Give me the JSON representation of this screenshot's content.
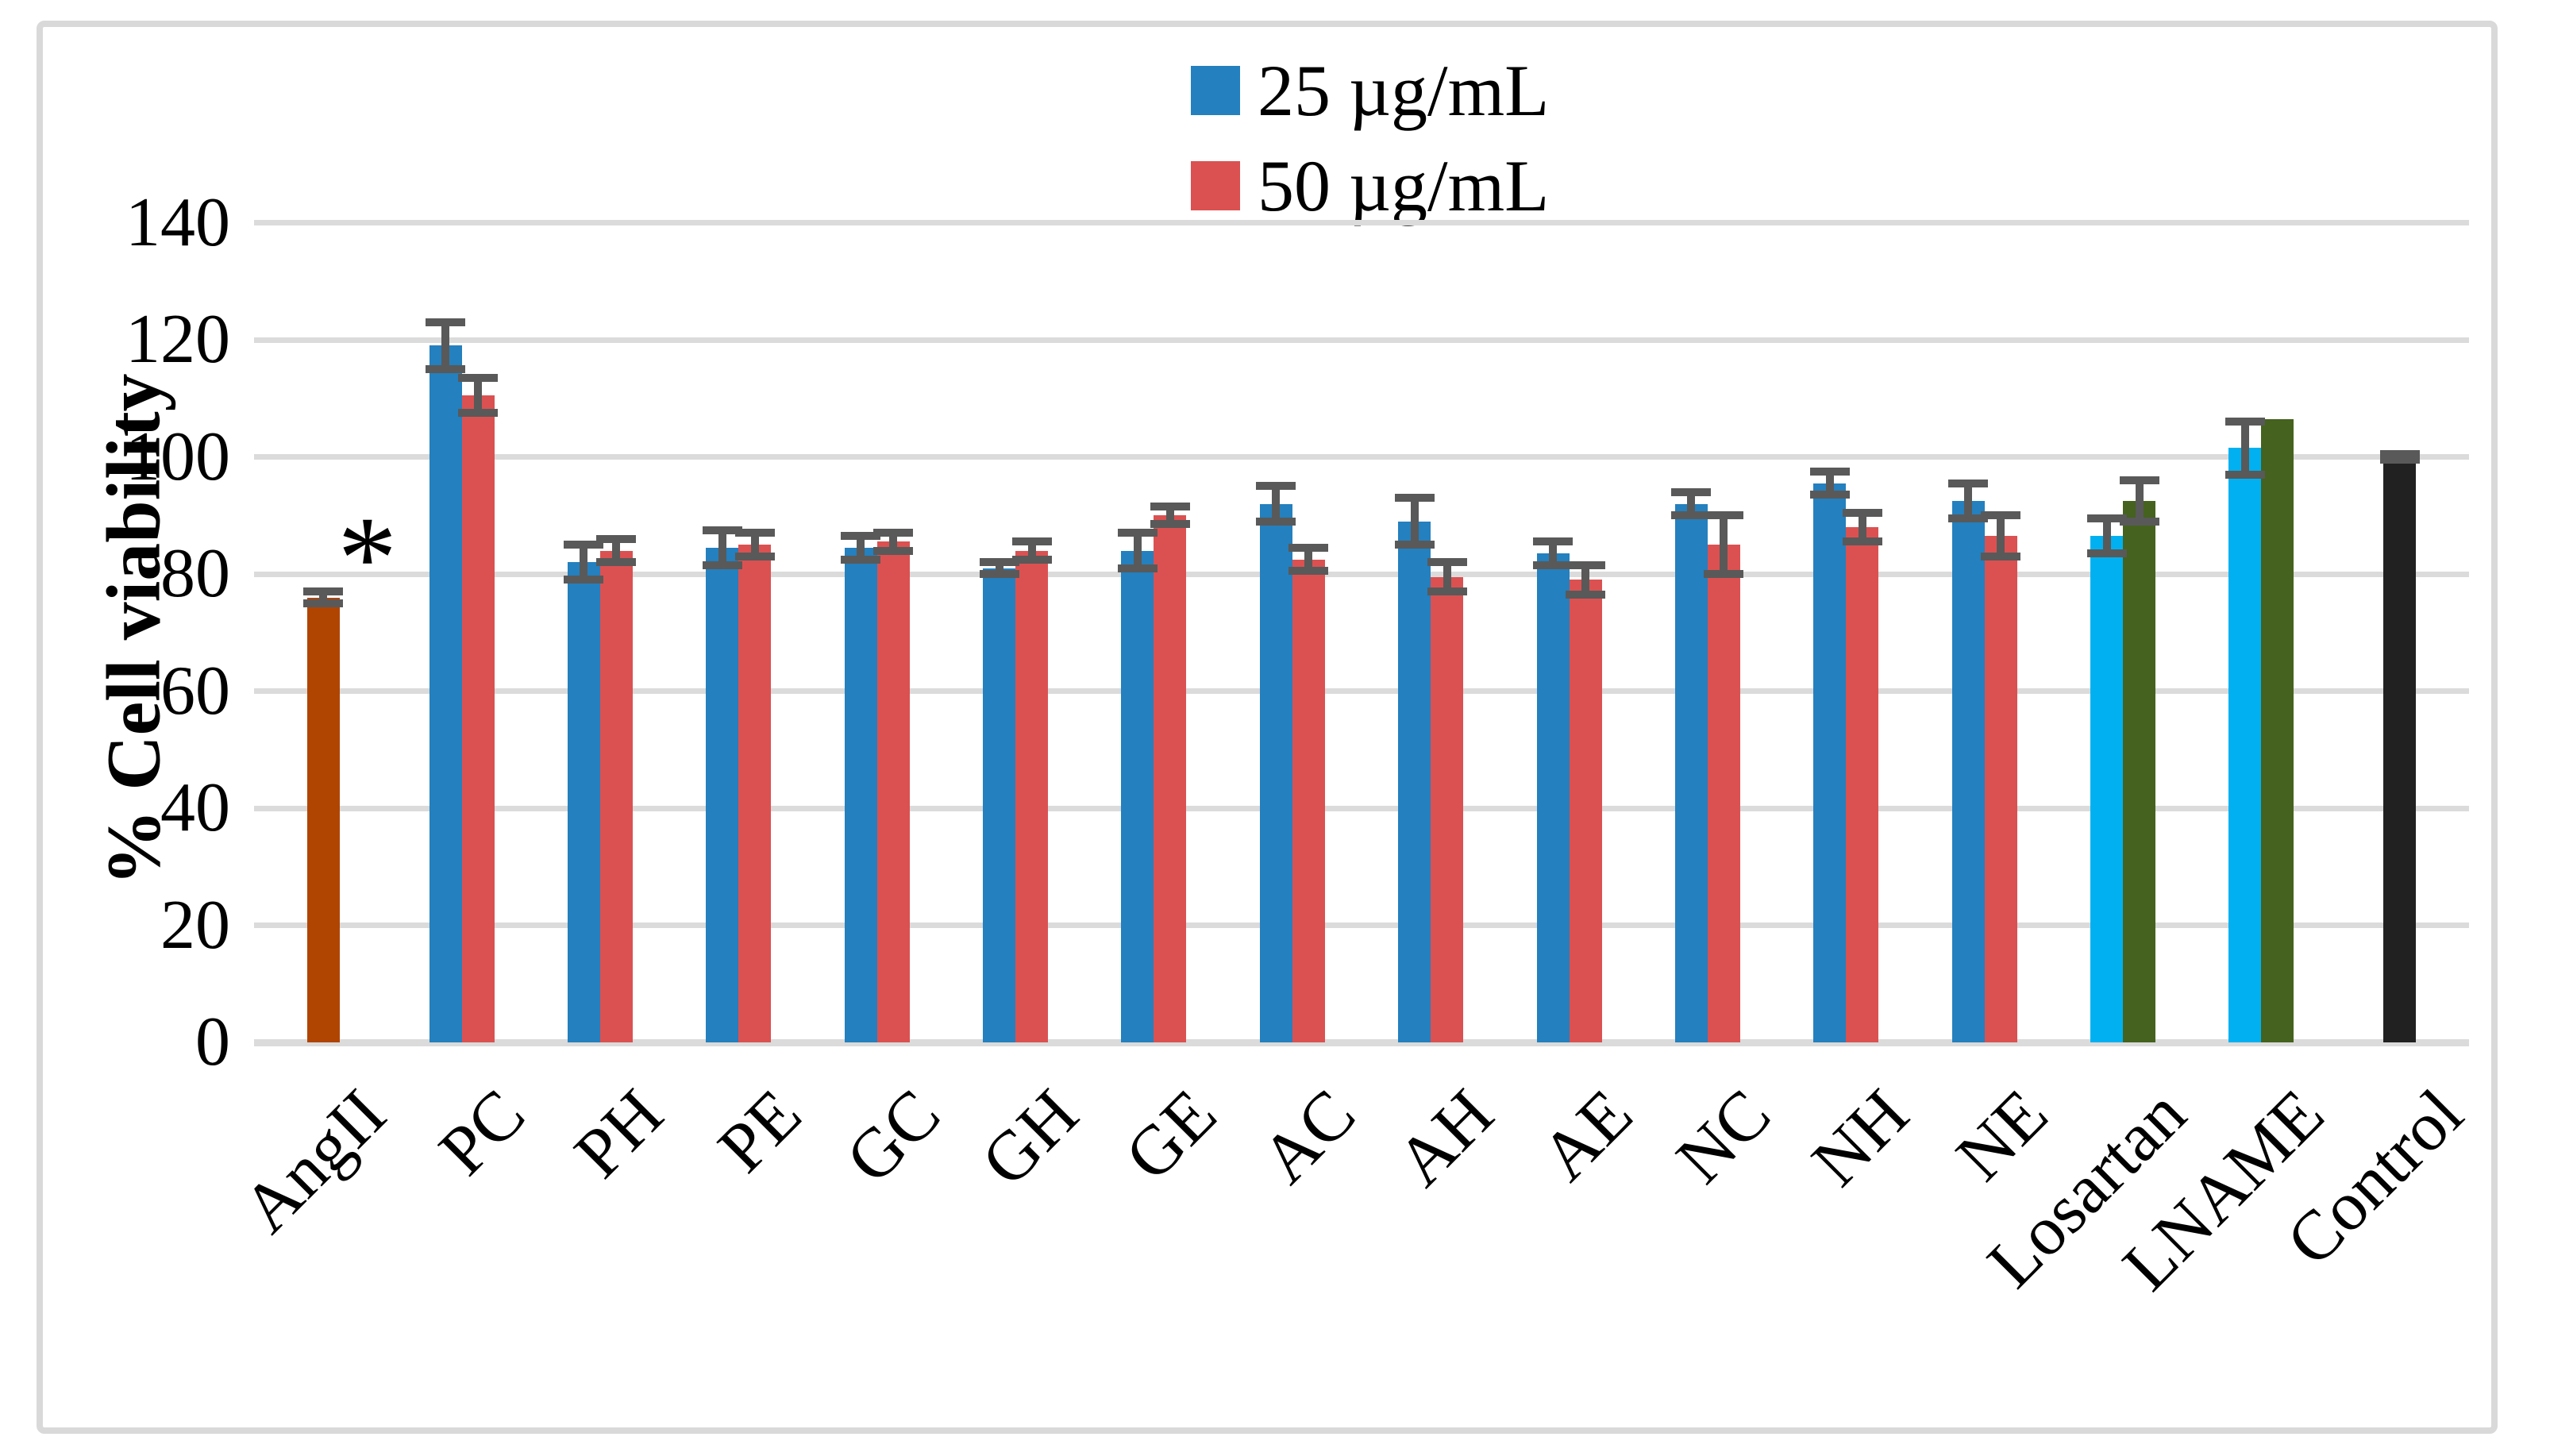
{
  "legend": {
    "items": [
      {
        "label": "25 µg/mL",
        "color": "#2480BE"
      },
      {
        "label": "50 µg/mL",
        "color": "#DB5151"
      }
    ]
  },
  "chart_data": {
    "type": "bar",
    "title": "",
    "xlabel": "",
    "ylabel": "% Cell viability",
    "ylim": [
      0,
      140
    ],
    "yticks": [
      0,
      20,
      40,
      60,
      80,
      100,
      120,
      140
    ],
    "grid": "horizontal",
    "legend_position": "top-center",
    "error_bar_color": "#595959",
    "gridline_color": "#DBDBDB",
    "palette": {
      "c25": "#2480BE",
      "c50": "#DB5151",
      "angii": "#B04502",
      "cyan25": "#00B0F0",
      "olive50": "#45621E",
      "control": "#212121"
    },
    "series_names": [
      "25 µg/mL",
      "50 µg/mL"
    ],
    "categories": [
      {
        "label": "AngII",
        "note": "*",
        "bars": [
          {
            "series": "single",
            "color": "angii",
            "value": 76,
            "err": 1
          }
        ]
      },
      {
        "label": "PC",
        "bars": [
          {
            "series": "25 µg/mL",
            "color": "c25",
            "value": 119,
            "err": 4
          },
          {
            "series": "50 µg/mL",
            "color": "c50",
            "value": 110.5,
            "err": 3
          }
        ]
      },
      {
        "label": "PH",
        "bars": [
          {
            "series": "25 µg/mL",
            "color": "c25",
            "value": 82,
            "err": 3
          },
          {
            "series": "50 µg/mL",
            "color": "c50",
            "value": 84,
            "err": 2
          }
        ]
      },
      {
        "label": "PE",
        "bars": [
          {
            "series": "25 µg/mL",
            "color": "c25",
            "value": 84.5,
            "err": 3
          },
          {
            "series": "50 µg/mL",
            "color": "c50",
            "value": 85,
            "err": 2
          }
        ]
      },
      {
        "label": "GC",
        "bars": [
          {
            "series": "25 µg/mL",
            "color": "c25",
            "value": 84.5,
            "err": 2
          },
          {
            "series": "50 µg/mL",
            "color": "c50",
            "value": 85.5,
            "err": 1.5
          }
        ]
      },
      {
        "label": "GH",
        "bars": [
          {
            "series": "25 µg/mL",
            "color": "c25",
            "value": 81,
            "err": 1
          },
          {
            "series": "50 µg/mL",
            "color": "c50",
            "value": 84,
            "err": 1.5
          }
        ]
      },
      {
        "label": "GE",
        "bars": [
          {
            "series": "25 µg/mL",
            "color": "c25",
            "value": 84,
            "err": 3
          },
          {
            "series": "50 µg/mL",
            "color": "c50",
            "value": 90,
            "err": 1.5
          }
        ]
      },
      {
        "label": "AC",
        "bars": [
          {
            "series": "25 µg/mL",
            "color": "c25",
            "value": 92,
            "err": 3
          },
          {
            "series": "50 µg/mL",
            "color": "c50",
            "value": 82.5,
            "err": 2
          }
        ]
      },
      {
        "label": "AH",
        "bars": [
          {
            "series": "25 µg/mL",
            "color": "c25",
            "value": 89,
            "err": 4
          },
          {
            "series": "50 µg/mL",
            "color": "c50",
            "value": 79.5,
            "err": 2.5
          }
        ]
      },
      {
        "label": "AE",
        "bars": [
          {
            "series": "25 µg/mL",
            "color": "c25",
            "value": 83.5,
            "err": 2
          },
          {
            "series": "50 µg/mL",
            "color": "c50",
            "value": 79,
            "err": 2.5
          }
        ]
      },
      {
        "label": "NC",
        "bars": [
          {
            "series": "25 µg/mL",
            "color": "c25",
            "value": 92,
            "err": 2
          },
          {
            "series": "50 µg/mL",
            "color": "c50",
            "value": 85,
            "err": 5
          }
        ]
      },
      {
        "label": "NH",
        "bars": [
          {
            "series": "25 µg/mL",
            "color": "c25",
            "value": 95.5,
            "err": 2
          },
          {
            "series": "50 µg/mL",
            "color": "c50",
            "value": 88,
            "err": 2.5
          }
        ]
      },
      {
        "label": "NE",
        "bars": [
          {
            "series": "25 µg/mL",
            "color": "c25",
            "value": 92.5,
            "err": 3
          },
          {
            "series": "50 µg/mL",
            "color": "c50",
            "value": 86.5,
            "err": 3.5
          }
        ]
      },
      {
        "label": "Losartan",
        "bars": [
          {
            "series": "25 µg/mL",
            "color": "cyan25",
            "value": 86.5,
            "err": 3
          },
          {
            "series": "50 µg/mL",
            "color": "olive50",
            "value": 92.5,
            "err": 3.5
          }
        ]
      },
      {
        "label": "LNAME",
        "bars": [
          {
            "series": "25 µg/mL",
            "color": "cyan25",
            "value": 101.5,
            "err": 4.5
          },
          {
            "series": "50 µg/mL",
            "color": "olive50",
            "value": 106.5,
            "err": null
          }
        ]
      },
      {
        "label": "Control",
        "bars": [
          {
            "series": "single",
            "color": "control",
            "value": 100,
            "err": 0.5
          }
        ]
      }
    ],
    "annotations": [
      {
        "text": "*",
        "category": "AngII",
        "y": 82
      }
    ]
  }
}
